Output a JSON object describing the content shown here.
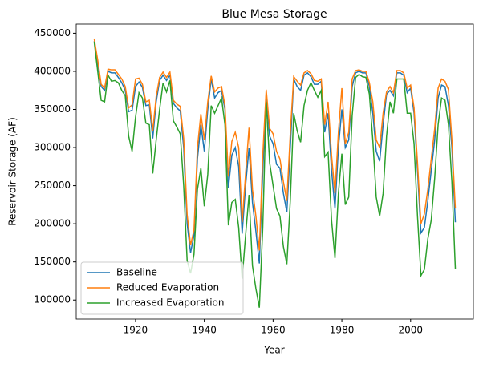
{
  "chart_data": {
    "type": "line",
    "title": "Blue Mesa Storage",
    "xlabel": "Year",
    "ylabel": "Reservoir Storage (AF)",
    "x": [
      1908,
      1909,
      1910,
      1911,
      1912,
      1913,
      1914,
      1915,
      1916,
      1917,
      1918,
      1919,
      1920,
      1921,
      1922,
      1923,
      1924,
      1925,
      1926,
      1927,
      1928,
      1929,
      1930,
      1931,
      1932,
      1933,
      1934,
      1935,
      1936,
      1937,
      1938,
      1939,
      1940,
      1941,
      1942,
      1943,
      1944,
      1945,
      1946,
      1947,
      1948,
      1949,
      1950,
      1951,
      1952,
      1953,
      1954,
      1955,
      1956,
      1957,
      1958,
      1959,
      1960,
      1961,
      1962,
      1963,
      1964,
      1965,
      1966,
      1967,
      1968,
      1969,
      1970,
      1971,
      1972,
      1973,
      1974,
      1975,
      1976,
      1977,
      1978,
      1979,
      1980,
      1981,
      1982,
      1983,
      1984,
      1985,
      1986,
      1987,
      1988,
      1989,
      1990,
      1991,
      1992,
      1993,
      1994,
      1995,
      1996,
      1997,
      1998,
      1999,
      2000,
      2001,
      2002,
      2003,
      2004,
      2005,
      2006,
      2007,
      2008,
      2009,
      2010,
      2011,
      2012,
      2013
    ],
    "series": [
      {
        "name": "Baseline",
        "color": "#1f77b4",
        "values": [
          440000,
          410000,
          380000,
          375000,
          400000,
          398000,
          398000,
          392000,
          385000,
          375000,
          347000,
          349000,
          380000,
          386000,
          379000,
          355000,
          356000,
          312000,
          360000,
          388000,
          395000,
          388000,
          395000,
          358000,
          352000,
          348000,
          300000,
          200000,
          162000,
          185000,
          285000,
          330000,
          295000,
          350000,
          390000,
          365000,
          372000,
          375000,
          350000,
          247000,
          290000,
          300000,
          275000,
          187000,
          250000,
          300000,
          228000,
          190000,
          148000,
          270000,
          370000,
          315000,
          305000,
          278000,
          273000,
          240000,
          215000,
          300000,
          390000,
          380000,
          375000,
          395000,
          398000,
          393000,
          383000,
          383000,
          387000,
          320000,
          345000,
          270000,
          220000,
          300000,
          350000,
          300000,
          310000,
          380000,
          398000,
          400000,
          398000,
          398000,
          380000,
          345000,
          295000,
          282000,
          330000,
          370000,
          375000,
          368000,
          398000,
          398000,
          395000,
          372000,
          378000,
          345000,
          270000,
          188000,
          195000,
          230000,
          270000,
          310000,
          365000,
          382000,
          380000,
          355000,
          300000,
          202000
        ]
      },
      {
        "name": "Reduced Evaporation",
        "color": "#ff7f0e",
        "values": [
          442000,
          415000,
          383000,
          378000,
          403000,
          402000,
          402000,
          396000,
          390000,
          380000,
          352000,
          356000,
          390000,
          391000,
          383000,
          360000,
          362000,
          322000,
          367000,
          392000,
          399000,
          392000,
          399000,
          362000,
          357000,
          354000,
          312000,
          212000,
          172000,
          192000,
          300000,
          344000,
          310000,
          360000,
          394000,
          373000,
          378000,
          380000,
          355000,
          262000,
          308000,
          320000,
          300000,
          202000,
          265000,
          326000,
          245000,
          210000,
          165000,
          290000,
          376000,
          325000,
          318000,
          295000,
          285000,
          255000,
          230000,
          318000,
          393000,
          387000,
          382000,
          398000,
          401000,
          397000,
          388000,
          387000,
          390000,
          330000,
          360000,
          290000,
          240000,
          320000,
          378000,
          305000,
          320000,
          390000,
          401000,
          402000,
          400000,
          400000,
          385000,
          360000,
          310000,
          300000,
          345000,
          373000,
          380000,
          372000,
          401000,
          401000,
          398000,
          378000,
          382000,
          352000,
          280000,
          200000,
          213000,
          245000,
          285000,
          325000,
          378000,
          390000,
          387000,
          376000,
          310000,
          220000
        ]
      },
      {
        "name": "Increased Evaporation",
        "color": "#2ca02c",
        "values": [
          438000,
          400000,
          362000,
          360000,
          395000,
          387000,
          388000,
          385000,
          375000,
          368000,
          315000,
          295000,
          340000,
          372000,
          365000,
          332000,
          330000,
          266000,
          310000,
          350000,
          385000,
          373000,
          388000,
          335000,
          327000,
          318000,
          250000,
          152000,
          135000,
          160000,
          245000,
          273000,
          223000,
          265000,
          355000,
          345000,
          355000,
          365000,
          330000,
          198000,
          228000,
          232000,
          195000,
          128000,
          185000,
          238000,
          145000,
          115000,
          90000,
          195000,
          360000,
          280000,
          250000,
          220000,
          210000,
          170000,
          147000,
          230000,
          345000,
          322000,
          307000,
          355000,
          375000,
          385000,
          375000,
          366000,
          375000,
          288000,
          294000,
          205000,
          155000,
          240000,
          292000,
          225000,
          235000,
          342000,
          392000,
          396000,
          393000,
          392000,
          370000,
          310000,
          235000,
          210000,
          240000,
          315000,
          360000,
          345000,
          390000,
          390000,
          390000,
          345000,
          345000,
          305000,
          210000,
          132000,
          140000,
          180000,
          205000,
          260000,
          330000,
          365000,
          362000,
          330000,
          255000,
          141000
        ]
      }
    ],
    "xlim": [
      1902.75,
      2018.25
    ],
    "ylim": [
      75000,
      462000
    ],
    "xticks": [
      1920,
      1940,
      1960,
      1980,
      2000
    ],
    "yticks": [
      100000,
      150000,
      200000,
      250000,
      300000,
      350000,
      400000,
      450000
    ],
    "legend": "lower left"
  }
}
